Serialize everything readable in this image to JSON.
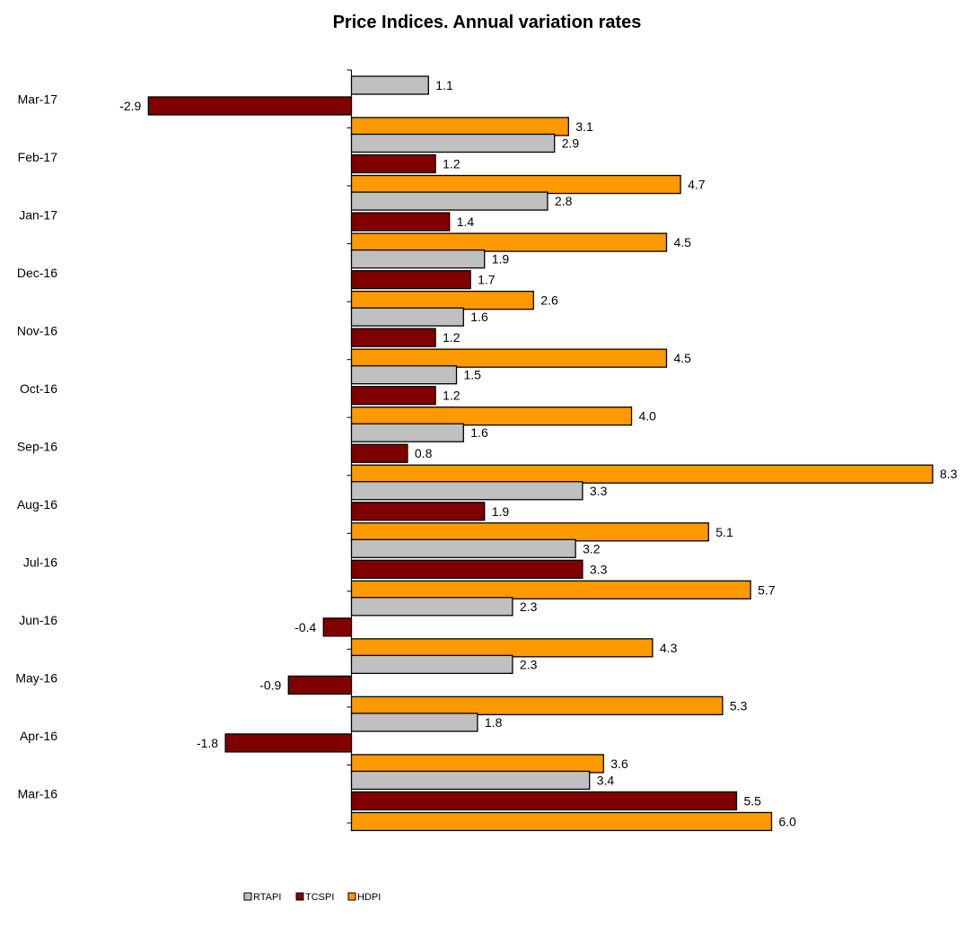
{
  "chart_data": {
    "type": "bar",
    "orientation": "horizontal",
    "title": "Price Indices. Annual variation rates",
    "xlabel": "",
    "ylabel": "",
    "categories": [
      "Mar-17",
      "Feb-17",
      "Jan-17",
      "Dec-16",
      "Nov-16",
      "Oct-16",
      "Sep-16",
      "Aug-16",
      "Jul-16",
      "Jun-16",
      "May-16",
      "Apr-16",
      "Mar-16"
    ],
    "series": [
      {
        "name": "RTAPI",
        "color": "#c0c0c0",
        "values": [
          1.1,
          2.9,
          2.8,
          1.9,
          1.6,
          1.5,
          1.6,
          3.3,
          3.2,
          2.3,
          2.3,
          1.8,
          3.4
        ]
      },
      {
        "name": "TCSPI",
        "color": "#800000",
        "values": [
          -2.9,
          1.2,
          1.4,
          1.7,
          1.2,
          1.2,
          0.8,
          1.9,
          3.3,
          -0.4,
          -0.9,
          -1.8,
          5.5
        ]
      },
      {
        "name": "HDPI",
        "color": "#ff9900",
        "values": [
          3.1,
          4.7,
          4.5,
          2.6,
          4.5,
          4.0,
          8.3,
          5.1,
          5.7,
          4.3,
          5.3,
          3.6,
          6.0
        ]
      }
    ],
    "value_labels": [
      [
        "1.1",
        "2.9",
        "2.8",
        "1.9",
        "1.6",
        "1.5",
        "1.6",
        "3.3",
        "3.2",
        "2.3",
        "2.3",
        "1.8",
        "3.4"
      ],
      [
        "-2.9",
        "1.2",
        "1.4",
        "1.7",
        "1.2",
        "1.2",
        "0.8",
        "1.9",
        "3.3",
        "-0.4",
        "-0.9",
        "-1.8",
        "5.5"
      ],
      [
        "3.1",
        "4.7",
        "4.5",
        "2.6",
        "4.5",
        "4.0",
        "8.3",
        "5.1",
        "5.7",
        "4.3",
        "5.3",
        "3.6",
        "6.0"
      ]
    ],
    "xlim": [
      -3.0,
      8.5
    ],
    "grid": false,
    "legend_position": "bottom-center"
  }
}
